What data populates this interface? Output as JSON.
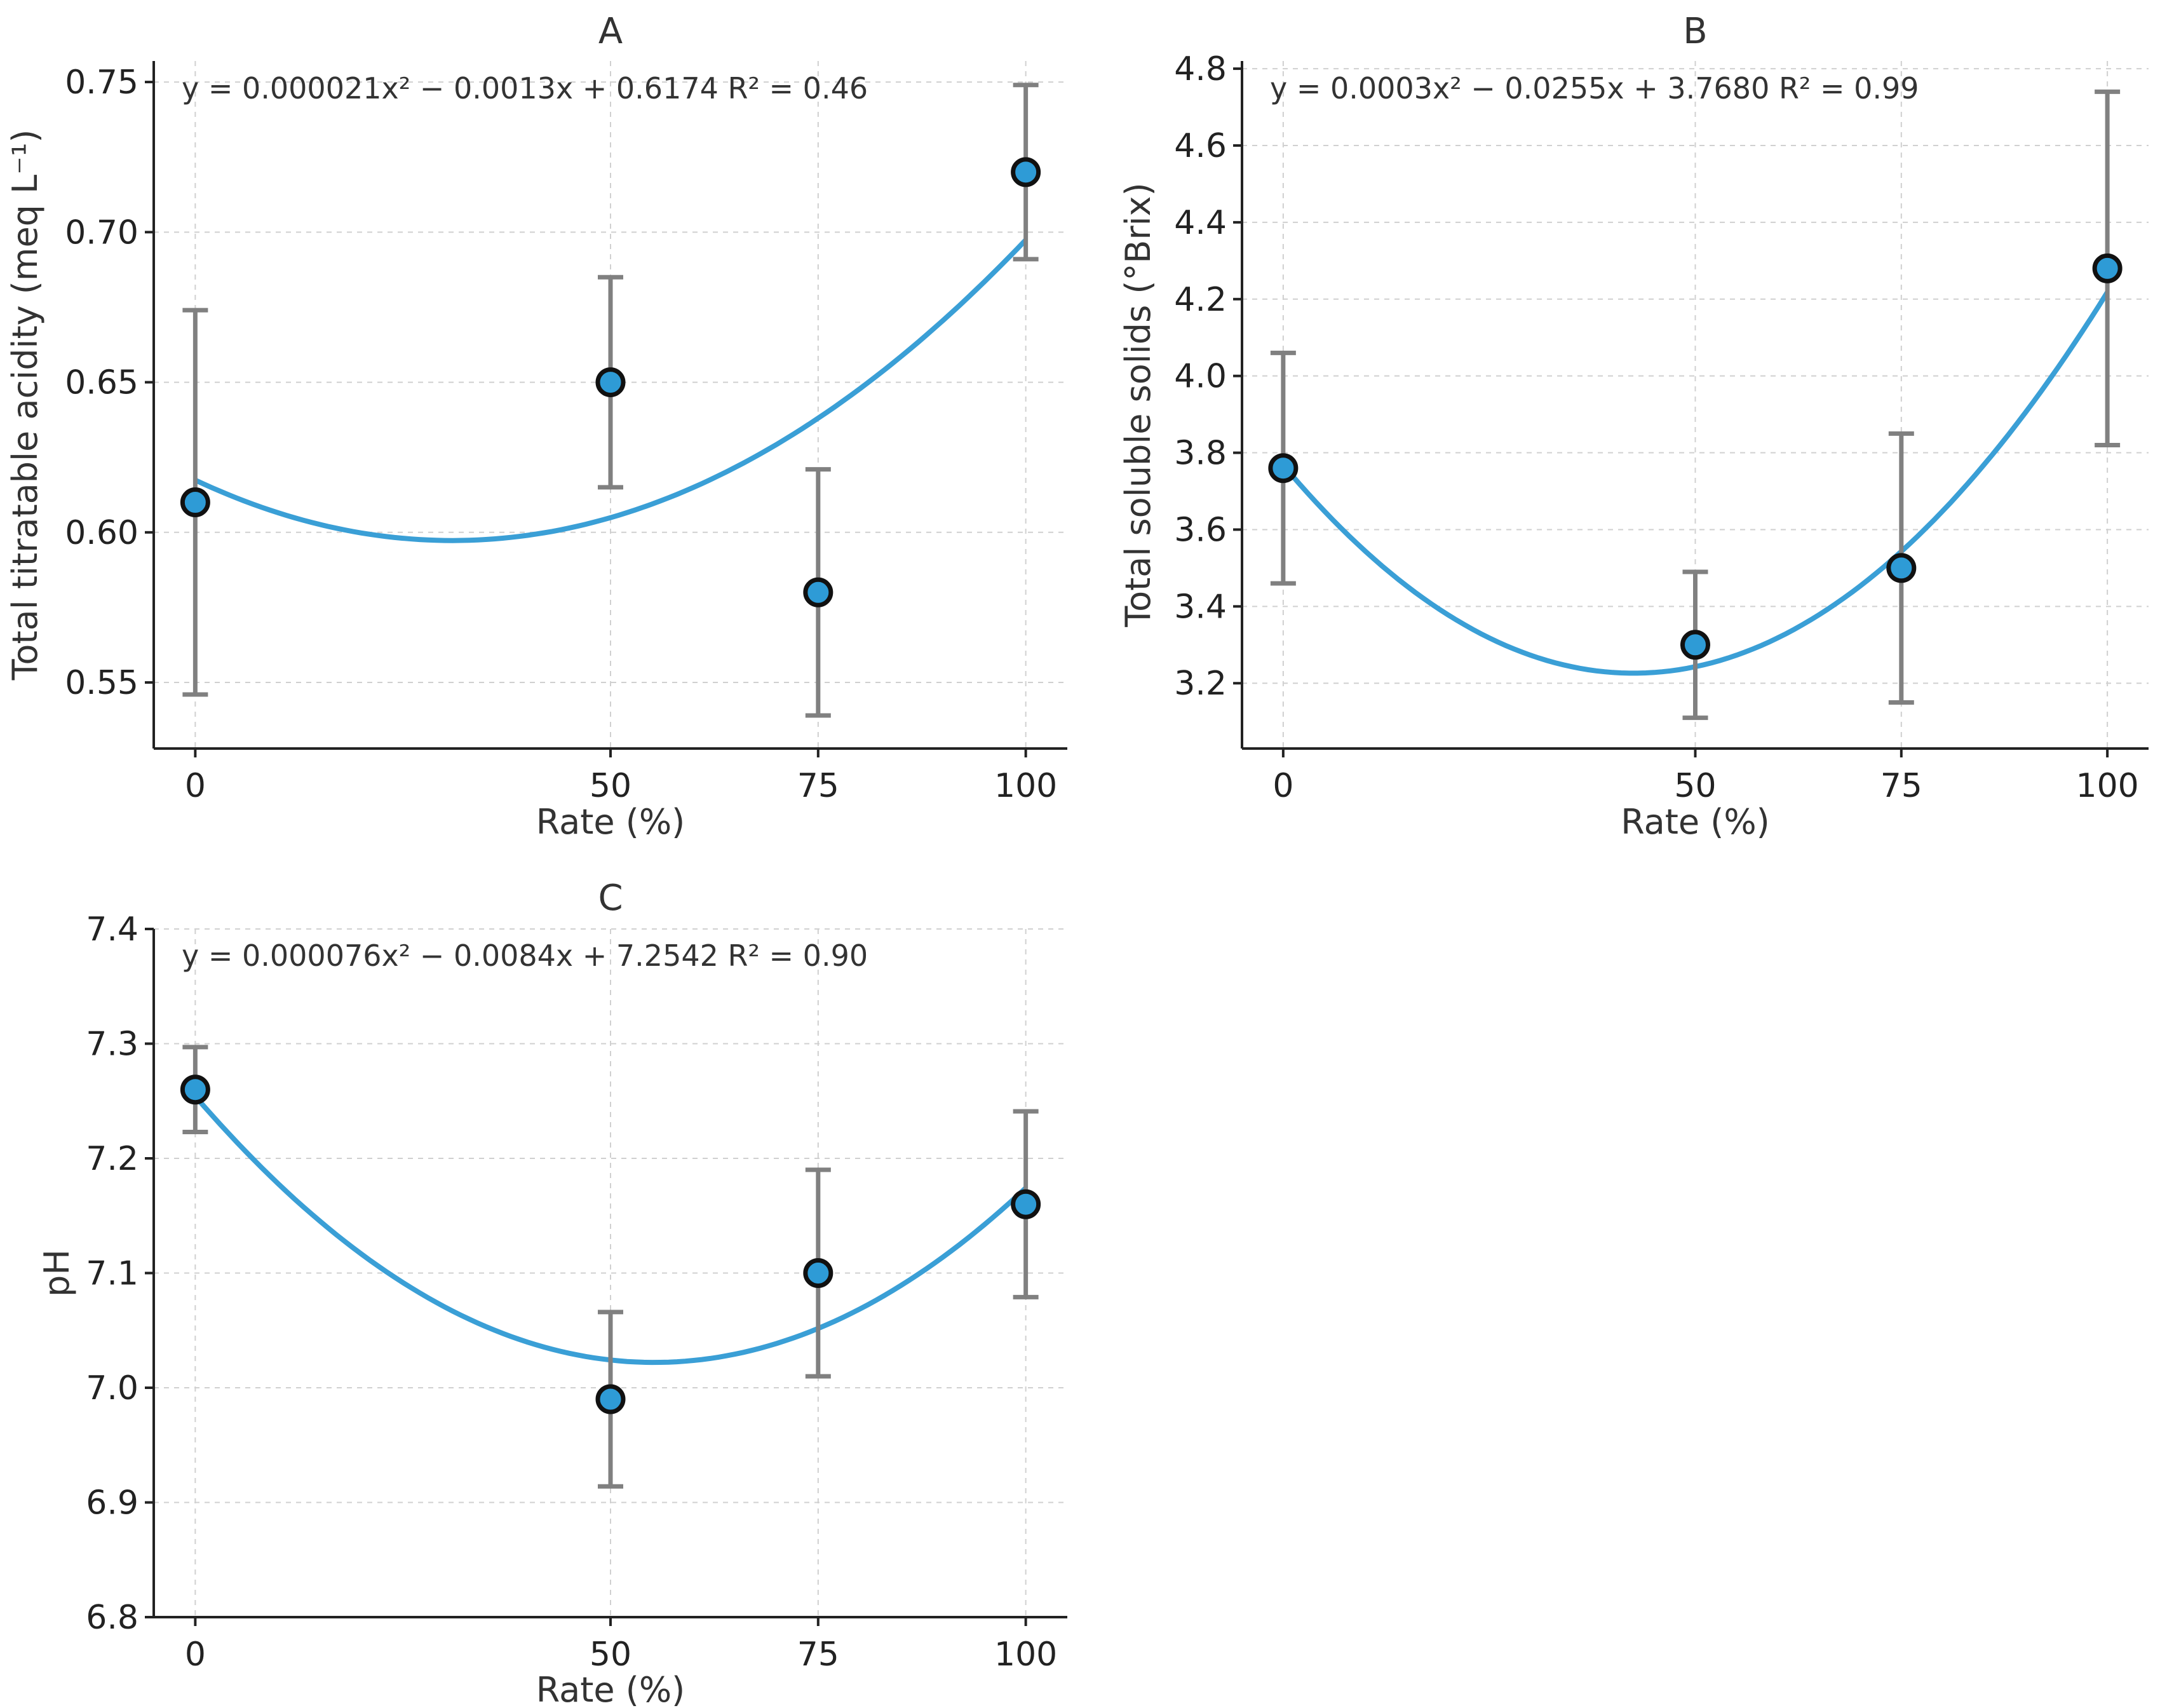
{
  "chart_data": [
    {
      "id": "A",
      "type": "scatter",
      "title": "A",
      "xlabel": "Rate (%)",
      "ylabel": "Total titratable acidity (meq L⁻¹)",
      "x": [
        0,
        50,
        75,
        100
      ],
      "xticks": [
        "0",
        "50",
        "75",
        "100"
      ],
      "xlim": [
        -5,
        105
      ],
      "ylim": [
        0.528,
        0.757
      ],
      "yticks": [
        "0.55",
        "0.60",
        "0.65",
        "0.70",
        "0.75"
      ],
      "ytick_values": [
        0.55,
        0.6,
        0.65,
        0.7,
        0.75
      ],
      "series": [
        {
          "name": "observed",
          "values": [
            0.61,
            0.65,
            0.58,
            0.72
          ],
          "error": [
            0.064,
            0.035,
            0.041,
            0.029
          ]
        }
      ],
      "fit": {
        "type": "quadratic",
        "a": 2.1e-05,
        "b": -0.0013,
        "c": 0.6174
      },
      "equation": "y = 0.000021x² − 0.0013x + 0.6174  R² = 0.46",
      "grid": true
    },
    {
      "id": "B",
      "type": "scatter",
      "title": "B",
      "xlabel": "Rate (%)",
      "ylabel": "Total soluble solids (°Brix)",
      "x": [
        0,
        50,
        75,
        100
      ],
      "xticks": [
        "0",
        "50",
        "75",
        "100"
      ],
      "xlim": [
        -5,
        105
      ],
      "ylim": [
        3.03,
        4.82
      ],
      "yticks": [
        "3.2",
        "3.4",
        "3.6",
        "3.8",
        "4.0",
        "4.2",
        "4.4",
        "4.6",
        "4.8"
      ],
      "ytick_values": [
        3.2,
        3.4,
        3.6,
        3.8,
        4.0,
        4.2,
        4.4,
        4.6,
        4.8
      ],
      "series": [
        {
          "name": "observed",
          "values": [
            3.76,
            3.3,
            3.5,
            4.28
          ],
          "error": [
            0.3,
            0.19,
            0.35,
            0.46
          ]
        }
      ],
      "fit": {
        "type": "quadratic",
        "a": 0.0003,
        "b": -0.0255,
        "c": 3.768
      },
      "equation": "y = 0.0003x² − 0.0255x + 3.7680  R² = 0.99",
      "grid": true
    },
    {
      "id": "C",
      "type": "scatter",
      "title": "C",
      "xlabel": "Rate (%)",
      "ylabel": "pH",
      "x": [
        0,
        50,
        75,
        100
      ],
      "xticks": [
        "0",
        "50",
        "75",
        "100"
      ],
      "xlim": [
        -5,
        105
      ],
      "ylim": [
        6.8,
        7.4
      ],
      "yticks": [
        "6.8",
        "6.9",
        "7.0",
        "7.1",
        "7.2",
        "7.3",
        "7.4"
      ],
      "ytick_values": [
        6.8,
        6.9,
        7.0,
        7.1,
        7.2,
        7.3,
        7.4
      ],
      "series": [
        {
          "name": "observed",
          "values": [
            7.26,
            6.99,
            7.1,
            7.16
          ],
          "error": [
            0.037,
            0.076,
            0.09,
            0.081
          ]
        }
      ],
      "fit": {
        "type": "quadratic",
        "a": 7.6e-05,
        "b": -0.0084,
        "c": 7.2542
      },
      "equation": "y = 0.000076x² − 0.0084x + 7.2542  R² = 0.90",
      "grid": true
    }
  ],
  "colors": {
    "marker": "#2e9bd6",
    "fit_line": "#3a9fd6",
    "error_bar": "#808080"
  }
}
